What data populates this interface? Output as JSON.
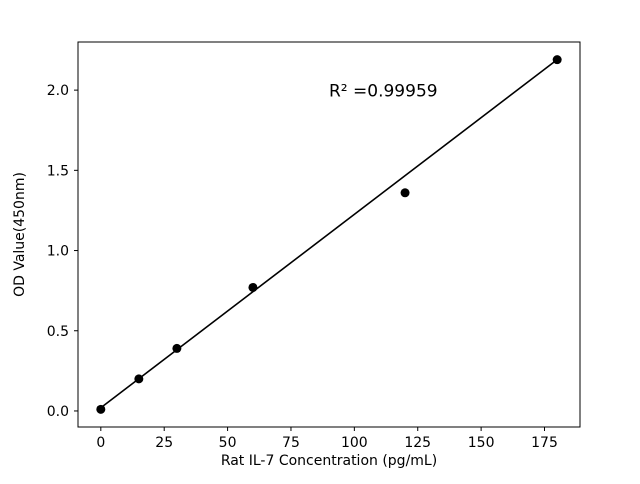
{
  "chart_data": {
    "type": "scatter",
    "title": "",
    "xlabel": "Rat IL-7 Concentration (pg/mL)",
    "ylabel": "OD Value(450nm)",
    "x": [
      0,
      15,
      30,
      60,
      120,
      180
    ],
    "y": [
      0.01,
      0.2,
      0.39,
      0.77,
      1.36,
      2.19
    ],
    "fit_line": {
      "x": [
        0,
        180
      ],
      "y": [
        0.02,
        2.19
      ]
    },
    "annotation": {
      "text": "R² =0.99959",
      "x": 90,
      "y": 1.96
    },
    "xlim": [
      -9,
      189
    ],
    "ylim": [
      -0.1,
      2.3
    ],
    "xticks": [
      0,
      25,
      50,
      75,
      100,
      125,
      150,
      175
    ],
    "xtick_labels": [
      "0",
      "25",
      "50",
      "75",
      "100",
      "125",
      "150",
      "175"
    ],
    "yticks": [
      0.0,
      0.5,
      1.0,
      1.5,
      2.0
    ],
    "ytick_labels": [
      "0.0",
      "0.5",
      "1.0",
      "1.5",
      "2.0"
    ],
    "grid": false,
    "legend": "none",
    "marker_color": "#000000",
    "line_color": "#000000",
    "background_color": "#ffffff"
  }
}
